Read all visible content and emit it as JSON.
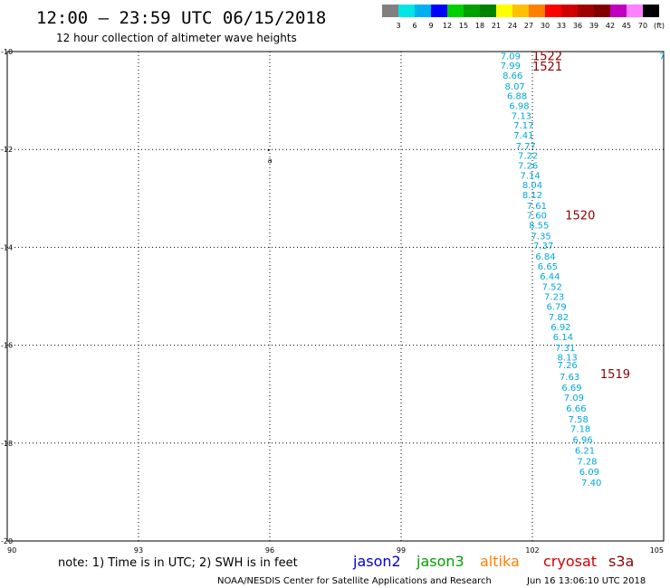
{
  "chart_data": {
    "type": "scatter",
    "title": "12:00 – 23:59 UTC 06/15/2018",
    "subtitle": "12 hour collection of altimeter wave heights",
    "xlim": [
      90,
      105
    ],
    "ylim": [
      -20,
      -10
    ],
    "x_ticks": [
      "90",
      "93",
      "96",
      "99",
      "102",
      "105"
    ],
    "y_ticks": [
      "-10",
      "-12",
      "-14",
      "-16",
      "-18",
      "-20"
    ],
    "grid": true,
    "series": [
      {
        "name": "s3a",
        "color": "#00a8d8",
        "points": [
          {
            "lon": 101.5,
            "lat": -10.08,
            "label": "7.09"
          },
          {
            "lon": 101.5,
            "lat": -10.28,
            "label": "7.99"
          },
          {
            "lon": 101.55,
            "lat": -10.48,
            "label": "8.66"
          },
          {
            "lon": 101.6,
            "lat": -10.7,
            "label": "8.07"
          },
          {
            "lon": 101.65,
            "lat": -10.9,
            "label": "6.88"
          },
          {
            "lon": 101.7,
            "lat": -11.1,
            "label": "6.98"
          },
          {
            "lon": 101.75,
            "lat": -11.3,
            "label": "7.13"
          },
          {
            "lon": 101.8,
            "lat": -11.5,
            "label": "7.17"
          },
          {
            "lon": 101.8,
            "lat": -11.7,
            "label": "7.41"
          },
          {
            "lon": 101.85,
            "lat": -11.92,
            "label": "7.77"
          },
          {
            "lon": 101.9,
            "lat": -12.12,
            "label": "7.22"
          },
          {
            "lon": 101.9,
            "lat": -12.32,
            "label": "7.26"
          },
          {
            "lon": 101.95,
            "lat": -12.52,
            "label": "7.14"
          },
          {
            "lon": 102.0,
            "lat": -12.72,
            "label": "8.04"
          },
          {
            "lon": 102.0,
            "lat": -12.92,
            "label": "8.12"
          },
          {
            "lon": 102.1,
            "lat": -13.14,
            "label": "7.61"
          },
          {
            "lon": 102.1,
            "lat": -13.34,
            "label": "7.60"
          },
          {
            "lon": 102.15,
            "lat": -13.54,
            "label": "8.55"
          },
          {
            "lon": 102.2,
            "lat": -13.76,
            "label": "7.35"
          },
          {
            "lon": 102.25,
            "lat": -13.96,
            "label": "7.37"
          },
          {
            "lon": 102.3,
            "lat": -14.18,
            "label": "6.84"
          },
          {
            "lon": 102.35,
            "lat": -14.38,
            "label": "6.65"
          },
          {
            "lon": 102.4,
            "lat": -14.58,
            "label": "6.44"
          },
          {
            "lon": 102.45,
            "lat": -14.8,
            "label": "7.52"
          },
          {
            "lon": 102.5,
            "lat": -15.0,
            "label": "7.23"
          },
          {
            "lon": 102.55,
            "lat": -15.2,
            "label": "6.79"
          },
          {
            "lon": 102.6,
            "lat": -15.42,
            "label": "7.82"
          },
          {
            "lon": 102.65,
            "lat": -15.62,
            "label": "6.92"
          },
          {
            "lon": 102.7,
            "lat": -15.82,
            "label": "6.14"
          },
          {
            "lon": 102.75,
            "lat": -16.04,
            "label": "7.31"
          },
          {
            "lon": 102.8,
            "lat": -16.24,
            "label": "8.13"
          },
          {
            "lon": 102.8,
            "lat": -16.4,
            "label": "7.26"
          },
          {
            "lon": 102.85,
            "lat": -16.64,
            "label": "7.63"
          },
          {
            "lon": 102.9,
            "lat": -16.86,
            "label": "6.69"
          },
          {
            "lon": 102.95,
            "lat": -17.06,
            "label": "7.09"
          },
          {
            "lon": 103.0,
            "lat": -17.28,
            "label": "6.66"
          },
          {
            "lon": 103.05,
            "lat": -17.5,
            "label": "7.58"
          },
          {
            "lon": 103.1,
            "lat": -17.7,
            "label": "7.18"
          },
          {
            "lon": 103.15,
            "lat": -17.92,
            "label": "6.96"
          },
          {
            "lon": 103.2,
            "lat": -18.14,
            "label": "6.21"
          },
          {
            "lon": 103.25,
            "lat": -18.36,
            "label": "7.28"
          },
          {
            "lon": 103.3,
            "lat": -18.58,
            "label": "6.09"
          },
          {
            "lon": 103.35,
            "lat": -18.8,
            "label": "7.40"
          }
        ]
      }
    ],
    "pass_labels": [
      {
        "lon": 102.0,
        "lat": -10.08,
        "label": "1522"
      },
      {
        "lon": 102.0,
        "lat": -10.3,
        "label": "1521"
      },
      {
        "lon": 102.75,
        "lat": -13.34,
        "label": "1520"
      },
      {
        "lon": 103.55,
        "lat": -16.58,
        "label": "1519"
      }
    ],
    "edge_label": {
      "lon": 104.9,
      "lat": -10.08,
      "label": "7"
    },
    "annotation": {
      "lon": 95.95,
      "lat": -12.2,
      "label": "a"
    }
  },
  "color_scale": {
    "ticks": [
      "3",
      "6",
      "9",
      "12",
      "15",
      "18",
      "21",
      "24",
      "27",
      "30",
      "33",
      "36",
      "39",
      "42",
      "45",
      "70",
      "(ft)"
    ],
    "colors": [
      "#808080",
      "#00e5e5",
      "#00b0f0",
      "#0000ff",
      "#00d000",
      "#00a000",
      "#008000",
      "#ffff00",
      "#ffc000",
      "#ff8000",
      "#ff0000",
      "#d00000",
      "#a00000",
      "#800000",
      "#c000c0",
      "#ff80ff",
      "#000000"
    ]
  },
  "footer": {
    "note": "note: 1) Time is in UTC; 2) SWH is in feet",
    "satellites": [
      {
        "name": "jason2",
        "color": "#0000cc"
      },
      {
        "name": "jason3",
        "color": "#00a000"
      },
      {
        "name": "altika",
        "color": "#ff8000"
      },
      {
        "name": "cryosat",
        "color": "#d00000"
      },
      {
        "name": "s3a",
        "color": "#8b0000"
      }
    ],
    "credit": "NOAA/NESDIS Center for Satellite Applications and Research",
    "timestamp": "Jun 16 13:06:10 UTC 2018"
  }
}
